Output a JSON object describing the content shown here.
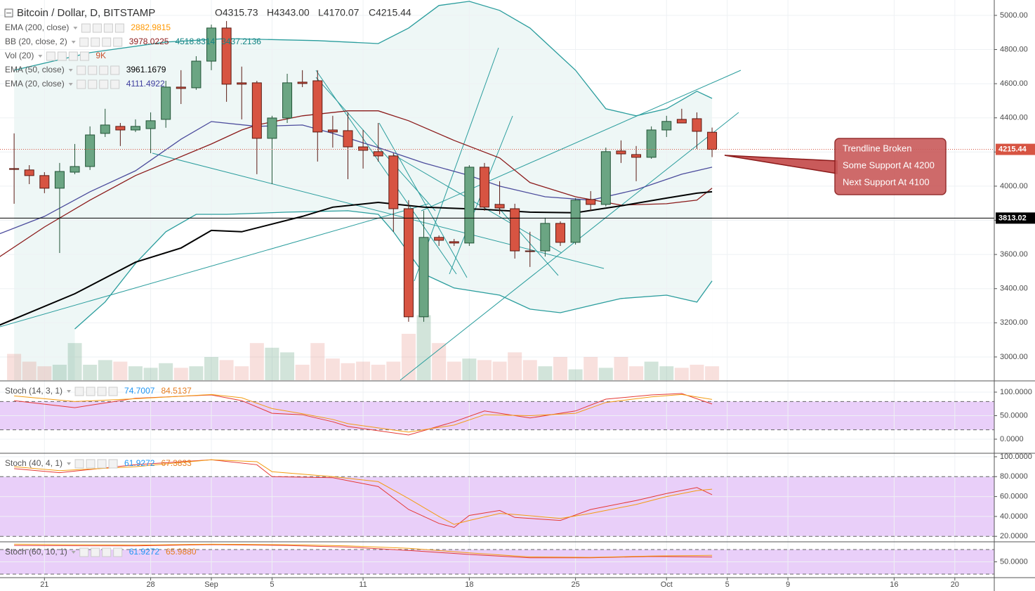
{
  "chart_data": [
    {
      "type": "candlestick",
      "title": "Bitcoin / Dollar, D, BITSTAMP",
      "ohlc_labels": [
        "O4315.73",
        "H4343.00",
        "L4170.07",
        "C4215.44"
      ],
      "x": [
        0,
        1,
        2,
        3,
        4,
        5,
        6,
        7,
        8,
        9,
        10,
        11,
        12,
        13,
        14,
        15,
        16,
        17,
        18,
        19,
        20,
        21,
        22,
        23,
        24,
        25,
        26,
        27,
        28,
        29,
        30,
        31,
        32,
        33,
        34,
        35,
        36,
        37,
        38,
        39,
        40,
        41,
        42,
        43,
        44,
        45,
        46
      ],
      "open": [
        4103,
        4095,
        4062,
        3988,
        4082,
        4115,
        4309,
        4350,
        4329,
        4337,
        4391,
        4580,
        4576,
        4732,
        4926,
        4605,
        4605,
        4280,
        4399,
        4609,
        4617,
        4329,
        4325,
        4230,
        4202,
        4177,
        3868,
        3235,
        3700,
        3675,
        3667,
        4111,
        3893,
        3868,
        3621,
        3621,
        3782,
        3671,
        3922,
        3893,
        4206,
        4185,
        4169,
        4329,
        4391,
        4395,
        4315.73
      ],
      "high": [
        4309,
        4123,
        4082,
        4136,
        4247,
        4350,
        4453,
        4370,
        4391,
        4432,
        4617,
        4679,
        4761,
        4946,
        4967,
        4700,
        4617,
        4412,
        4658,
        4679,
        4679,
        4412,
        4432,
        4329,
        4370,
        4193,
        3918,
        3856,
        3712,
        3691,
        4123,
        4136,
        4029,
        3897,
        3733,
        3815,
        3794,
        3930,
        3971,
        4226,
        4268,
        4235,
        4350,
        4412,
        4453,
        4432,
        4343
      ],
      "low": [
        3897,
        4012,
        3959,
        3609,
        4070,
        4095,
        4288,
        4235,
        4317,
        4193,
        4342,
        4481,
        4564,
        4679,
        4494,
        4391,
        4070,
        4012,
        4370,
        4580,
        4144,
        4226,
        4041,
        4103,
        4144,
        3733,
        3206,
        3206,
        3650,
        3650,
        3650,
        3856,
        3835,
        3576,
        3527,
        3588,
        3650,
        3658,
        3856,
        3881,
        4136,
        4029,
        4160,
        4288,
        4370,
        4218,
        4170.07
      ],
      "close": [
        4098,
        4062,
        3988,
        4086,
        4115,
        4300,
        4358,
        4329,
        4350,
        4383,
        4580,
        4572,
        4732,
        4926,
        4597,
        4597,
        4280,
        4399,
        4605,
        4601,
        4317,
        4317,
        4230,
        4210,
        4177,
        3868,
        3235,
        3700,
        3683,
        3667,
        4111,
        3877,
        3872,
        3621,
        3617,
        3782,
        3671,
        3918,
        3893,
        4202,
        4189,
        4169,
        4329,
        4379,
        4370,
        4321,
        4215.44
      ],
      "volume": [
        17,
        12,
        9,
        10,
        24,
        10,
        13,
        12,
        9,
        8,
        11,
        8,
        9,
        15,
        13,
        9,
        24,
        21,
        18,
        10,
        24,
        14,
        11,
        12,
        10,
        12,
        30,
        42,
        24,
        12,
        14,
        13,
        12,
        18,
        13,
        9,
        15,
        7,
        15,
        8,
        15,
        9,
        12,
        9,
        8,
        10,
        9
      ],
      "up_color": "#6ba583",
      "down_color": "#d75442",
      "up_border": "#225437",
      "down_border": "#5b1a13",
      "volume_up_color": "rgba(107,165,131,0.3)",
      "volume_down_color": "rgba(215,84,66,0.18)",
      "xlim": [
        -0.93,
        64.6
      ],
      "xticks": [
        {
          "value": 2,
          "label": "21"
        },
        {
          "value": 9,
          "label": "28"
        },
        {
          "value": 13,
          "label": "Sep"
        },
        {
          "value": 17,
          "label": "5"
        },
        {
          "value": 23,
          "label": "11"
        },
        {
          "value": 30,
          "label": "18"
        },
        {
          "value": 37,
          "label": "25"
        },
        {
          "value": 43,
          "label": "Oct"
        },
        {
          "value": 47,
          "label": "5"
        },
        {
          "value": 51,
          "label": "9"
        },
        {
          "value": 58,
          "label": "16"
        },
        {
          "value": 62,
          "label": "20"
        }
      ],
      "ylim": [
        2864,
        5090
      ],
      "yticks": [
        {
          "value": 3000,
          "label": "3000.00"
        },
        {
          "value": 3200,
          "label": "3200.00"
        },
        {
          "value": 3400,
          "label": "3400.00"
        },
        {
          "value": 3600,
          "label": "3600.00"
        },
        {
          "value": 3800,
          "label": "3800.00"
        },
        {
          "value": 4000,
          "label": "4000.00"
        },
        {
          "value": 4200,
          "label": "4200.00"
        },
        {
          "value": 4400,
          "label": "4400.00"
        },
        {
          "value": 4600,
          "label": "4600.00"
        },
        {
          "value": 4800,
          "label": "4800.00"
        },
        {
          "value": 5000,
          "label": "5000.00"
        }
      ],
      "grid": true,
      "last_price": 4215.44,
      "last_price_color": "#d75442",
      "hline": 3813.02,
      "hline_color": "#000000",
      "legend": [
        {
          "name": "EMA (200, close)",
          "readouts": [
            "2882.9815"
          ],
          "colors": [
            "#ff9800"
          ]
        },
        {
          "name": "BB (20, close, 2)",
          "readouts": [
            "3978.0225",
            "4518.8314",
            "3437.2136"
          ],
          "colors": [
            "#8b1a1a",
            "#138484",
            "#138484"
          ],
          "fill_color": "#eef7f6",
          "lines": [
            {
              "color": "#8b1a1a",
              "x": [
                -1,
                2,
                5,
                8,
                13,
                15,
                16,
                19,
                22,
                24,
                26,
                29,
                32,
                34,
                37,
                40,
                43,
                45,
                46
              ],
              "values": [
                3584,
                3761,
                3918,
                4062,
                4247,
                4329,
                4358,
                4412,
                4441,
                4441,
                4383,
                4268,
                4165,
                4021,
                3938,
                3889,
                3897,
                3918,
                3988
              ]
            },
            {
              "color": "#2a9d9d",
              "x": [
                0,
                5,
                10,
                14,
                20,
                24,
                26,
                28,
                30,
                32,
                34,
                37,
                39,
                41,
                43,
                45,
                46
              ],
              "values": [
                4679,
                4782,
                4844,
                4864,
                4852,
                4835,
                4926,
                5058,
                5082,
                5029,
                4926,
                4679,
                4453,
                4412,
                4453,
                4556,
                4514
              ]
            },
            {
              "color": "#2a9d9d",
              "x": [
                4,
                6,
                8,
                10,
                12,
                14,
                18,
                22,
                24,
                25,
                27,
                29,
                32,
                34,
                36,
                38,
                40,
                43,
                45,
                46
              ],
              "values": [
                3164,
                3322,
                3548,
                3733,
                3835,
                3835,
                3848,
                3856,
                3835,
                3733,
                3486,
                3404,
                3362,
                3280,
                3259,
                3301,
                3342,
                3362,
                3321,
                3445
              ]
            }
          ]
        },
        {
          "name": "Vol (20)",
          "readouts": [
            "9K"
          ],
          "colors": [
            "#c8502d"
          ]
        },
        {
          "name": "EMA (50, close)",
          "readouts": [
            "3961.1679"
          ],
          "colors": [
            "#000000"
          ],
          "lines": [
            {
              "color": "#000000",
              "x": [
                -1,
                4,
                8,
                11,
                13,
                15,
                19,
                21,
                24,
                27,
                31,
                34,
                37,
                40,
                43,
                45,
                46
              ],
              "values": [
                3185,
                3370,
                3555,
                3638,
                3741,
                3733,
                3823,
                3877,
                3905,
                3877,
                3864,
                3848,
                3844,
                3885,
                3930,
                3959,
                3967
              ]
            }
          ]
        },
        {
          "name": "EMA (20, close)",
          "readouts": [
            "4111.4922"
          ],
          "colors": [
            "#3f3f9f"
          ],
          "lines": [
            {
              "color": "#4b4b9c",
              "x": [
                -1,
                2,
                5,
                8,
                11,
                13,
                16,
                19,
                21,
                24,
                27,
                30,
                32,
                35,
                38,
                41,
                44,
                46
              ],
              "values": [
                3720,
                3823,
                3967,
                4090,
                4275,
                4378,
                4350,
                4358,
                4309,
                4226,
                4136,
                4062,
                4000,
                3938,
                3918,
                3979,
                4070,
                4111
              ]
            }
          ]
        }
      ],
      "annotation": [
        "Trendline Broken",
        "Some Support At 4200",
        "Next Support At 4100"
      ],
      "annotation_color": "#c95a5a"
    },
    {
      "type": "line",
      "title": "Stoch (14, 3, 1)",
      "readouts": [
        "74.7007",
        "84.5137"
      ],
      "readout_colors": [
        "#2196f3",
        "#e67e22"
      ],
      "ylim": [
        -28.4,
        122.4
      ],
      "yticks": [
        {
          "value": 100,
          "label": "100.0000"
        },
        {
          "value": 50,
          "label": "50.0000"
        },
        {
          "value": 0,
          "label": "0.0000"
        }
      ],
      "grid": true,
      "band": [
        20,
        80
      ],
      "band_color": "#e9cff9",
      "series": [
        {
          "color": "#e53935",
          "x": [
            0,
            4,
            8,
            13,
            15,
            17,
            19,
            21,
            22,
            26,
            29,
            31,
            34,
            37,
            39,
            42,
            44,
            46
          ],
          "values": [
            82,
            67,
            87,
            94,
            82,
            55,
            52,
            37,
            27,
            9,
            37,
            60,
            45,
            60,
            85,
            94,
            97,
            74.7007
          ]
        },
        {
          "color": "#f39c12",
          "x": [
            0,
            4,
            8,
            13,
            15,
            17,
            19,
            21,
            22,
            26,
            29,
            31,
            34,
            37,
            39,
            42,
            44,
            46
          ],
          "values": [
            92,
            80,
            86,
            95,
            88,
            65,
            54,
            42,
            33,
            15,
            30,
            52,
            50,
            55,
            78,
            90,
            95,
            84.5137
          ]
        }
      ]
    },
    {
      "type": "line",
      "title": "Stoch (40, 4, 1)",
      "readouts": [
        "61.9272",
        "67.3833"
      ],
      "readout_colors": [
        "#2196f3",
        "#e67e22"
      ],
      "ylim": [
        15.2,
        102.8
      ],
      "yticks": [
        {
          "value": 100,
          "label": "100.0000"
        },
        {
          "value": 80,
          "label": "80.0000"
        },
        {
          "value": 60,
          "label": "60.0000"
        },
        {
          "value": 40,
          "label": "40.0000"
        },
        {
          "value": 20,
          "label": "20.0000"
        }
      ],
      "grid": true,
      "band": [
        20,
        80
      ],
      "band_color": "#e9cff9",
      "series": [
        {
          "color": "#e53935",
          "x": [
            0,
            3,
            8,
            13,
            16,
            17,
            21,
            24,
            26,
            28,
            29,
            30,
            32,
            33,
            36,
            38,
            41,
            43,
            45,
            46
          ],
          "values": [
            88,
            84,
            92,
            97,
            92,
            80,
            79,
            70,
            47,
            33,
            29,
            41,
            46,
            39,
            36,
            47,
            56,
            63,
            69,
            61.9272
          ]
        },
        {
          "color": "#f39c12",
          "x": [
            0,
            3,
            8,
            13,
            16,
            17,
            21,
            24,
            26,
            28,
            29,
            30,
            32,
            33,
            36,
            38,
            41,
            43,
            45,
            46
          ],
          "values": [
            90,
            86,
            90,
            97,
            95,
            85,
            80,
            75,
            58,
            40,
            32,
            36,
            43,
            42,
            38,
            43,
            52,
            60,
            66,
            67.3833
          ]
        }
      ]
    },
    {
      "type": "line",
      "title": "Stoch (60, 10, 1)",
      "readouts": [
        "61.9272",
        "65.9880"
      ],
      "readout_colors": [
        "#2196f3",
        "#e67e22"
      ],
      "ylim": [
        11.4,
        97.2
      ],
      "yticks": [
        {
          "value": 50,
          "label": "50.0000"
        }
      ],
      "grid": true,
      "band": [
        20,
        80
      ],
      "band_color": "#e9cff9",
      "series": [
        {
          "color": "#e53935",
          "x": [
            0,
            8,
            13,
            18,
            22,
            26,
            30,
            34,
            38,
            42,
            46
          ],
          "values": [
            90,
            89,
            92,
            90,
            86,
            78,
            68,
            60,
            60,
            63,
            61.9272
          ]
        },
        {
          "color": "#f39c12",
          "x": [
            0,
            8,
            13,
            18,
            22,
            26,
            30,
            34,
            38,
            42,
            46
          ],
          "values": [
            93,
            91,
            93,
            92,
            89,
            83,
            72,
            62,
            61,
            64,
            65.988
          ]
        }
      ]
    }
  ]
}
